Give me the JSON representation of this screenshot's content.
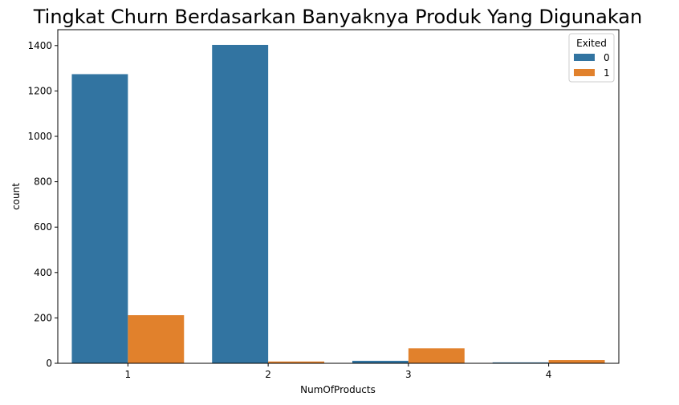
{
  "chart_data": {
    "type": "bar",
    "title": "Tingkat Churn Berdasarkan Banyaknya Produk Yang Digunakan",
    "xlabel": "NumOfProducts",
    "ylabel": "count",
    "categories": [
      "1",
      "2",
      "3",
      "4"
    ],
    "series": [
      {
        "name": "0",
        "values": [
          1274,
          1403,
          11,
          4
        ],
        "color": "#3274a1"
      },
      {
        "name": "1",
        "values": [
          212,
          8,
          66,
          14
        ],
        "color": "#e1812c"
      }
    ],
    "ylim": [
      0,
      1470
    ],
    "yticks": [
      0,
      200,
      400,
      600,
      800,
      1000,
      1200,
      1400
    ],
    "grid": false,
    "legend": {
      "title": "Exited",
      "placement": "top-right"
    }
  }
}
